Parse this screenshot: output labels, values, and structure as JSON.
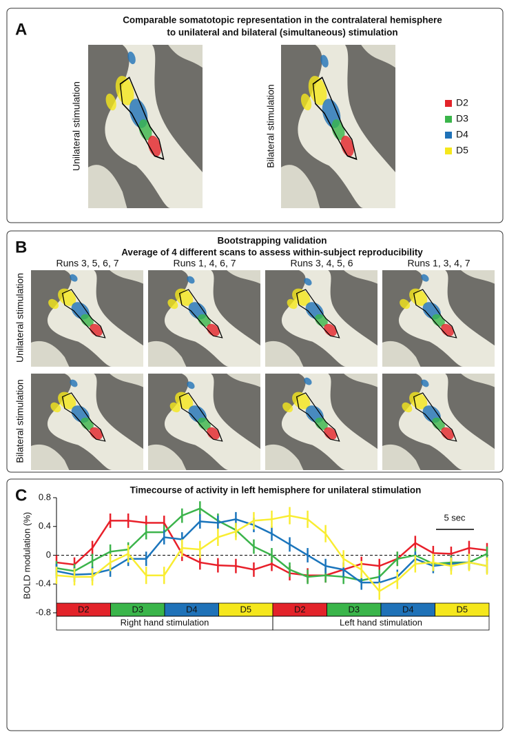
{
  "panel_a": {
    "label": "A",
    "title": [
      "Comparable somatotopic representation in the contralateral hemisphere",
      "to unilateral and bilateral (simultaneous) stimulation"
    ],
    "row_labels": [
      "Unilateral stimulation",
      "Bilateral stimulation"
    ],
    "legend": [
      {
        "name": "D2",
        "color": "#e3232a"
      },
      {
        "name": "D3",
        "color": "#3ab54a"
      },
      {
        "name": "D4",
        "color": "#1f72b8"
      },
      {
        "name": "D5",
        "color": "#f5e71c"
      }
    ]
  },
  "panel_b": {
    "label": "B",
    "title": "Bootstrapping validation",
    "subtitle": "Average of 4 different scans to assess within-subject reproducibility",
    "columns": [
      "Runs 3, 5, 6, 7",
      "Runs 1, 4, 6, 7",
      "Runs 3, 4, 5, 6",
      "Runs 1, 3, 4, 7"
    ],
    "row_labels": [
      "Unilateral stimulation",
      "Bilateral stimulation"
    ]
  },
  "chart_data": {
    "type": "line",
    "label": "C",
    "title": "Timecourse of activity in left hemisphere for unilateral stimulation",
    "ylabel": "BOLD modulation (%)",
    "ylim": [
      -0.8,
      0.8
    ],
    "yticks": [
      -0.8,
      -0.4,
      0,
      0.4,
      0.8
    ],
    "reference_line": 0,
    "scale_label": "5 sec",
    "series": [
      {
        "color": "#e8202a",
        "values": [
          -0.1,
          -0.13,
          0.1,
          0.48,
          0.48,
          0.45,
          0.45,
          0.02,
          -0.1,
          -0.14,
          -0.15,
          -0.2,
          -0.12,
          -0.25,
          -0.28,
          -0.28,
          -0.2,
          -0.12,
          -0.15,
          -0.05,
          0.17,
          0.03,
          0.02,
          0.1,
          0.07
        ],
        "errors": [
          0.1,
          0.1,
          0.1,
          0.1,
          0.1,
          0.1,
          0.1,
          0.1,
          0.1,
          0.1,
          0.1,
          0.1,
          0.1,
          0.1,
          0.1,
          0.1,
          0.1,
          0.1,
          0.1,
          0.1,
          0.1,
          0.1,
          0.1,
          0.1,
          0.1
        ]
      },
      {
        "color": "#3cb44b",
        "values": [
          -0.18,
          -0.22,
          -0.08,
          0.05,
          0.08,
          0.32,
          0.32,
          0.55,
          0.65,
          0.48,
          0.35,
          0.12,
          0,
          -0.2,
          -0.3,
          -0.28,
          -0.3,
          -0.35,
          -0.3,
          -0.05,
          0,
          -0.12,
          -0.1,
          -0.1,
          0.02
        ],
        "errors": [
          0.1,
          0.1,
          0.1,
          0.1,
          0.1,
          0.1,
          0.1,
          0.1,
          0.1,
          0.1,
          0.1,
          0.1,
          0.1,
          0.1,
          0.1,
          0.1,
          0.1,
          0.1,
          0.1,
          0.1,
          0.1,
          0.1,
          0.1,
          0.1,
          0.1
        ]
      },
      {
        "color": "#1b75bc",
        "values": [
          -0.22,
          -0.27,
          -0.26,
          -0.2,
          -0.05,
          -0.05,
          0.25,
          0.22,
          0.47,
          0.45,
          0.5,
          0.42,
          0.3,
          0.15,
          0,
          -0.15,
          -0.2,
          -0.38,
          -0.38,
          -0.3,
          -0.05,
          -0.15,
          -0.12,
          -0.1,
          -0.15
        ],
        "errors": [
          0.1,
          0.1,
          0.1,
          0.1,
          0.1,
          0.1,
          0.1,
          0.1,
          0.1,
          0.1,
          0.1,
          0.1,
          0.1,
          0.1,
          0.1,
          0.1,
          0.1,
          0.1,
          0.1,
          0.1,
          0.1,
          0.1,
          0.1,
          0.1,
          0.1
        ]
      },
      {
        "color": "#f9ed32",
        "values": [
          -0.28,
          -0.3,
          -0.3,
          -0.1,
          0.02,
          -0.28,
          -0.28,
          0.1,
          0.08,
          0.25,
          0.33,
          0.48,
          0.5,
          0.55,
          0.5,
          0.3,
          -0.05,
          -0.2,
          -0.5,
          -0.35,
          -0.12,
          -0.1,
          -0.15,
          -0.1,
          -0.15
        ],
        "errors": [
          0.12,
          0.12,
          0.12,
          0.12,
          0.12,
          0.12,
          0.12,
          0.12,
          0.12,
          0.12,
          0.12,
          0.12,
          0.12,
          0.12,
          0.12,
          0.12,
          0.12,
          0.12,
          0.12,
          0.12,
          0.12,
          0.12,
          0.12,
          0.12,
          0.12
        ]
      }
    ],
    "blocks": [
      {
        "name": "Right hand stimulation",
        "digits": [
          "D2",
          "D3",
          "D4",
          "D5"
        ]
      },
      {
        "name": "Left hand stimulation",
        "digits": [
          "D2",
          "D3",
          "D4",
          "D5"
        ]
      }
    ]
  }
}
